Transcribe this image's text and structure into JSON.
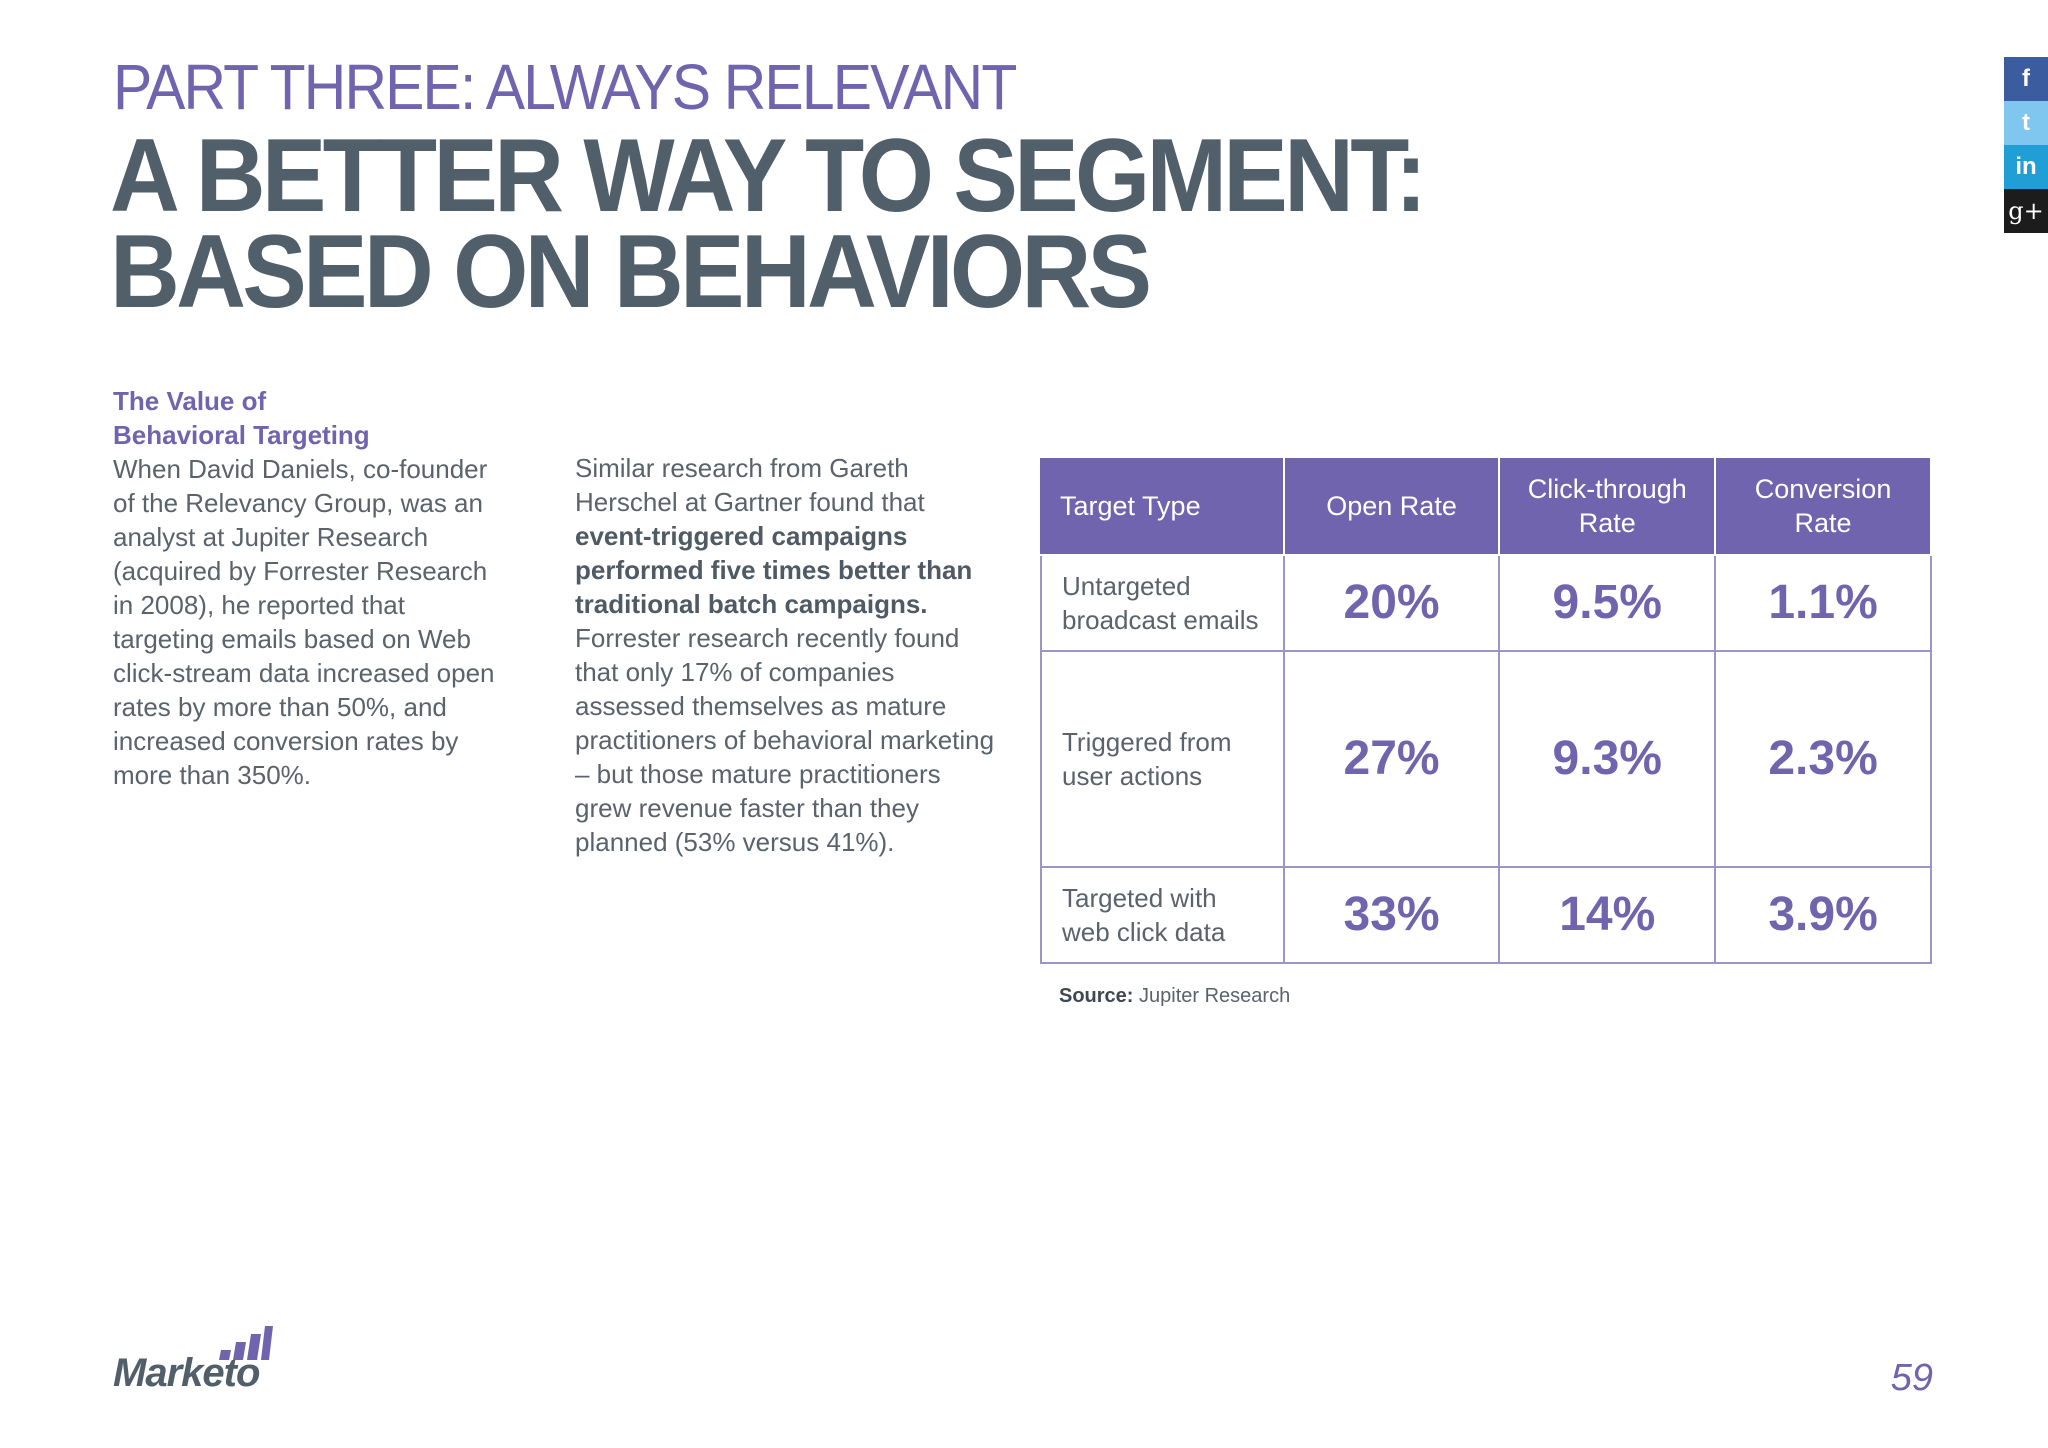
{
  "header": {
    "kicker": "PART THREE: ALWAYS RELEVANT",
    "title_line1": "A BETTER WAY TO SEGMENT:",
    "title_line2": "BASED ON BEHAVIORS"
  },
  "column1": {
    "subhead_line1": "The Value of",
    "subhead_line2": "Behavioral Targeting",
    "body": "When David Daniels, co-founder of the Relevancy Group, was an analyst at Jupiter Research (acquired by Forrester Research in 2008), he reported that targeting emails based on Web click-stream data increased open rates by more than 50%, and increased conversion rates by more than 350%."
  },
  "column2": {
    "intro": "Similar research from Gareth Herschel at Gartner found that ",
    "emphasis": "event-triggered campaigns performed five times better than traditional batch campaigns.",
    "rest": " Forrester research recently found that only 17% of companies assessed themselves as mature practitioners of behavioral marketing – but those mature practitioners grew revenue faster than they planned (53% versus 41%)."
  },
  "table": {
    "headers": [
      "Target Type",
      "Open Rate",
      "Click-through Rate",
      "Conversion Rate"
    ],
    "rows": [
      {
        "label": "Untargeted broadcast emails",
        "open": "20%",
        "ctr": "9.5%",
        "conv": "1.1%"
      },
      {
        "label": "Triggered from user actions",
        "open": "27%",
        "ctr": "9.3%",
        "conv": "2.3%"
      },
      {
        "label": "Targeted  with web click data",
        "open": "33%",
        "ctr": "14%",
        "conv": "3.9%"
      }
    ]
  },
  "source": {
    "label": "Source:",
    "text": " Jupiter Research"
  },
  "social": {
    "facebook": "f",
    "twitter": "t",
    "linkedin": "in",
    "googleplus": "g+"
  },
  "footer": {
    "logo_text": "Marketo",
    "page_number": "59"
  }
}
